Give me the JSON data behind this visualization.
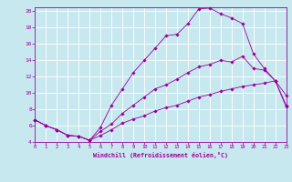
{
  "bg_color": "#c8e8f0",
  "line_color": "#990099",
  "grid_color": "#ffffff",
  "xlabel": "Windchill (Refroidissement éolien,°C)",
  "xlim": [
    0,
    23
  ],
  "ylim": [
    4,
    20.5
  ],
  "yticks": [
    4,
    6,
    8,
    10,
    12,
    14,
    16,
    18,
    20
  ],
  "xticks": [
    0,
    1,
    2,
    3,
    4,
    5,
    6,
    7,
    8,
    9,
    10,
    11,
    12,
    13,
    14,
    15,
    16,
    17,
    18,
    19,
    20,
    21,
    22,
    23
  ],
  "line1_x": [
    0,
    1,
    2,
    3,
    4,
    5,
    6,
    7,
    8,
    9,
    10,
    11,
    12,
    13,
    14,
    15,
    16,
    17,
    18,
    19,
    20,
    21,
    22,
    23
  ],
  "line1_y": [
    6.7,
    6.0,
    5.5,
    4.8,
    4.7,
    4.2,
    5.8,
    8.5,
    10.5,
    12.5,
    14.0,
    15.5,
    17.0,
    17.2,
    18.5,
    20.3,
    20.4,
    19.7,
    19.2,
    18.5,
    14.8,
    13.0,
    11.5,
    8.5
  ],
  "line2_x": [
    0,
    1,
    2,
    3,
    4,
    5,
    6,
    7,
    8,
    9,
    10,
    11,
    12,
    13,
    14,
    15,
    16,
    17,
    18,
    19,
    20,
    21,
    22,
    23
  ],
  "line2_y": [
    6.7,
    6.0,
    5.5,
    4.8,
    4.7,
    4.2,
    5.3,
    6.2,
    7.5,
    8.5,
    9.5,
    10.5,
    11.0,
    11.7,
    12.5,
    13.2,
    13.5,
    14.0,
    13.8,
    14.5,
    13.0,
    12.8,
    11.5,
    9.7
  ],
  "line3_x": [
    0,
    1,
    2,
    3,
    4,
    5,
    6,
    7,
    8,
    9,
    10,
    11,
    12,
    13,
    14,
    15,
    16,
    17,
    18,
    19,
    20,
    21,
    22,
    23
  ],
  "line3_y": [
    6.7,
    6.0,
    5.5,
    4.8,
    4.7,
    4.2,
    4.8,
    5.5,
    6.3,
    6.8,
    7.2,
    7.8,
    8.2,
    8.5,
    9.0,
    9.5,
    9.8,
    10.2,
    10.5,
    10.8,
    11.0,
    11.2,
    11.5,
    8.3
  ]
}
